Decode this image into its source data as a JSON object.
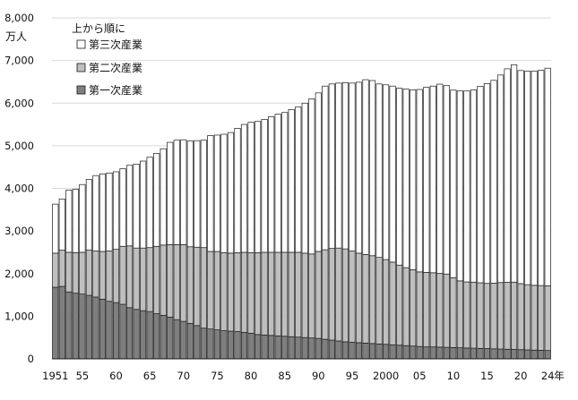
{
  "chart_data": {
    "type": "bar",
    "stacked": true,
    "y_unit": "万人",
    "x_unit": "年",
    "ylim": [
      0,
      8000
    ],
    "yticks": [
      "0",
      "1,000",
      "2,000",
      "3,000",
      "4,000",
      "5,000",
      "6,000",
      "7,000",
      "8,000"
    ],
    "ytick_values": [
      0,
      1000,
      2000,
      3000,
      4000,
      5000,
      6000,
      7000,
      8000
    ],
    "grid": "horizontal",
    "x_start": 1951,
    "x_end": 2024,
    "xtick_labels": [
      {
        "year": 1951,
        "label": "1951"
      },
      {
        "year": 1955,
        "label": "55"
      },
      {
        "year": 1960,
        "label": "60"
      },
      {
        "year": 1965,
        "label": "65"
      },
      {
        "year": 1970,
        "label": "70"
      },
      {
        "year": 1975,
        "label": "75"
      },
      {
        "year": 1980,
        "label": "80"
      },
      {
        "year": 1985,
        "label": "85"
      },
      {
        "year": 1990,
        "label": "90"
      },
      {
        "year": 1995,
        "label": "95"
      },
      {
        "year": 2000,
        "label": "2000"
      },
      {
        "year": 2005,
        "label": "05"
      },
      {
        "year": 2010,
        "label": "10"
      },
      {
        "year": 2015,
        "label": "15"
      },
      {
        "year": 2020,
        "label": "20"
      },
      {
        "year": 2024,
        "label": "24"
      }
    ],
    "legend": {
      "title": "上から順に",
      "placement": "top-left",
      "entries": [
        "第三次産業",
        "第二次産業",
        "第一次産業"
      ]
    },
    "colors": {
      "tertiary": "#ffffff",
      "secondary": "#bfbfbf",
      "primary": "#7f7f7f",
      "outline": "#1a1a1a",
      "grid": "#d9d9d9"
    },
    "series": [
      {
        "name": "第一次産業",
        "key": "primary",
        "values": [
          1680,
          1700,
          1570,
          1540,
          1520,
          1490,
          1450,
          1400,
          1350,
          1320,
          1280,
          1200,
          1160,
          1130,
          1110,
          1060,
          1020,
          980,
          920,
          880,
          830,
          780,
          720,
          700,
          680,
          660,
          650,
          640,
          620,
          600,
          570,
          560,
          550,
          540,
          530,
          520,
          510,
          500,
          490,
          480,
          460,
          440,
          420,
          400,
          390,
          380,
          370,
          360,
          350,
          340,
          330,
          320,
          310,
          300,
          290,
          280,
          280,
          275,
          270,
          265,
          260,
          255,
          250,
          245,
          240,
          235,
          230,
          225,
          220,
          215,
          210,
          205,
          200,
          195
        ]
      },
      {
        "name": "第二次産業",
        "key": "secondary",
        "values": [
          800,
          850,
          930,
          950,
          980,
          1060,
          1080,
          1120,
          1180,
          1250,
          1360,
          1450,
          1440,
          1470,
          1500,
          1580,
          1650,
          1700,
          1760,
          1800,
          1800,
          1840,
          1890,
          1820,
          1840,
          1830,
          1830,
          1850,
          1880,
          1890,
          1920,
          1940,
          1950,
          1960,
          1970,
          1980,
          1990,
          1980,
          1970,
          2040,
          2100,
          2150,
          2180,
          2180,
          2140,
          2100,
          2080,
          2060,
          2030,
          1990,
          1940,
          1880,
          1830,
          1790,
          1750,
          1750,
          1740,
          1730,
          1720,
          1640,
          1570,
          1550,
          1550,
          1540,
          1530,
          1540,
          1560,
          1570,
          1580,
          1550,
          1530,
          1520,
          1520,
          1520
        ]
      },
      {
        "name": "第三次産業",
        "key": "tertiary",
        "values": [
          1150,
          1200,
          1460,
          1490,
          1590,
          1660,
          1770,
          1820,
          1830,
          1820,
          1820,
          1890,
          1970,
          2040,
          2120,
          2180,
          2260,
          2400,
          2450,
          2460,
          2480,
          2500,
          2520,
          2720,
          2730,
          2780,
          2830,
          2920,
          3000,
          3060,
          3080,
          3120,
          3180,
          3240,
          3280,
          3350,
          3410,
          3520,
          3640,
          3720,
          3840,
          3860,
          3870,
          3900,
          3940,
          4010,
          4100,
          4110,
          4070,
          4100,
          4130,
          4150,
          4190,
          4220,
          4280,
          4340,
          4380,
          4440,
          4420,
          4400,
          4460,
          4480,
          4510,
          4610,
          4690,
          4760,
          4870,
          5010,
          5100,
          5000,
          5010,
          5025,
          5050,
          5105
        ]
      }
    ]
  }
}
